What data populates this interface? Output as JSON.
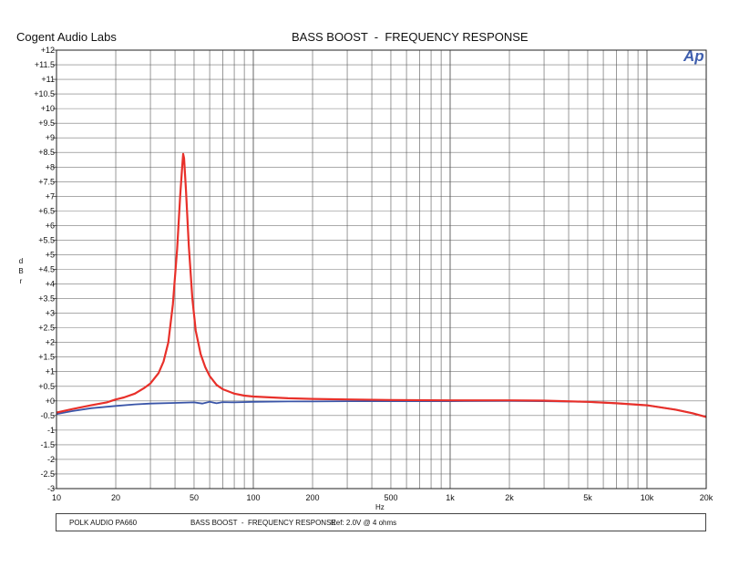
{
  "header": {
    "brand": "Cogent Audio Labs",
    "title": "BASS BOOST  -  FREQUENCY RESPONSE",
    "logo": "Ap"
  },
  "footer": {
    "model": "POLK AUDIO PA660",
    "title": "BASS BOOST  -  FREQUENCY RESPONSE",
    "ref": "Ref: 2.0V @ 4 ohms"
  },
  "chart_data": {
    "type": "line",
    "xlabel": "Hz",
    "ylabel": "d\nB\nr",
    "x_scale": "log",
    "xlim": [
      10,
      20000
    ],
    "ylim": [
      -3,
      12
    ],
    "grid": true,
    "x_ticks": [
      {
        "value": 10,
        "label": "10"
      },
      {
        "value": 20,
        "label": "20"
      },
      {
        "value": 50,
        "label": "50"
      },
      {
        "value": 100,
        "label": "100"
      },
      {
        "value": 200,
        "label": "200"
      },
      {
        "value": 500,
        "label": "500"
      },
      {
        "value": 1000,
        "label": "1k"
      },
      {
        "value": 2000,
        "label": "2k"
      },
      {
        "value": 5000,
        "label": "5k"
      },
      {
        "value": 10000,
        "label": "10k"
      },
      {
        "value": 20000,
        "label": "20k"
      }
    ],
    "y_ticks": [
      {
        "value": 12,
        "label": "+12"
      },
      {
        "value": 11.5,
        "label": "+11.5"
      },
      {
        "value": 11,
        "label": "+11"
      },
      {
        "value": 10.5,
        "label": "+10.5"
      },
      {
        "value": 10,
        "label": "+10"
      },
      {
        "value": 9.5,
        "label": "+9.5"
      },
      {
        "value": 9,
        "label": "+9"
      },
      {
        "value": 8.5,
        "label": "+8.5"
      },
      {
        "value": 8,
        "label": "+8"
      },
      {
        "value": 7.5,
        "label": "+7.5"
      },
      {
        "value": 7,
        "label": "+7"
      },
      {
        "value": 6.5,
        "label": "+6.5"
      },
      {
        "value": 6,
        "label": "+6"
      },
      {
        "value": 5.5,
        "label": "+5.5"
      },
      {
        "value": 5,
        "label": "+5"
      },
      {
        "value": 4.5,
        "label": "+4.5"
      },
      {
        "value": 4,
        "label": "+4"
      },
      {
        "value": 3.5,
        "label": "+3.5"
      },
      {
        "value": 3,
        "label": "+3"
      },
      {
        "value": 2.5,
        "label": "+2.5"
      },
      {
        "value": 2,
        "label": "+2"
      },
      {
        "value": 1.5,
        "label": "+1.5"
      },
      {
        "value": 1,
        "label": "+1"
      },
      {
        "value": 0.5,
        "label": "+0.5"
      },
      {
        "value": 0,
        "label": "+0"
      },
      {
        "value": -0.5,
        "label": "-0.5"
      },
      {
        "value": -1,
        "label": "-1"
      },
      {
        "value": -1.5,
        "label": "-1.5"
      },
      {
        "value": -2,
        "label": "-2"
      },
      {
        "value": -2.5,
        "label": "-2.5"
      },
      {
        "value": -3,
        "label": "-3"
      }
    ],
    "series": [
      {
        "color": "#e8302a",
        "points": [
          [
            10,
            -0.4
          ],
          [
            12,
            -0.28
          ],
          [
            15,
            -0.15
          ],
          [
            18,
            -0.05
          ],
          [
            20,
            0.05
          ],
          [
            22,
            0.12
          ],
          [
            25,
            0.25
          ],
          [
            28,
            0.45
          ],
          [
            30,
            0.6
          ],
          [
            33,
            0.95
          ],
          [
            35,
            1.35
          ],
          [
            37,
            2.0
          ],
          [
            39,
            3.3
          ],
          [
            41,
            5.2
          ],
          [
            42.5,
            7.0
          ],
          [
            43.5,
            8.0
          ],
          [
            44,
            8.45
          ],
          [
            44.5,
            8.3
          ],
          [
            45.5,
            7.2
          ],
          [
            47,
            5.3
          ],
          [
            49,
            3.5
          ],
          [
            51,
            2.4
          ],
          [
            54,
            1.6
          ],
          [
            57,
            1.15
          ],
          [
            60,
            0.85
          ],
          [
            65,
            0.55
          ],
          [
            70,
            0.4
          ],
          [
            80,
            0.25
          ],
          [
            90,
            0.18
          ],
          [
            100,
            0.15
          ],
          [
            150,
            0.09
          ],
          [
            200,
            0.07
          ],
          [
            300,
            0.05
          ],
          [
            500,
            0.03
          ],
          [
            1000,
            0.02
          ],
          [
            2000,
            0.02
          ],
          [
            3000,
            0.01
          ],
          [
            5000,
            -0.03
          ],
          [
            7000,
            -0.08
          ],
          [
            10000,
            -0.15
          ],
          [
            14000,
            -0.3
          ],
          [
            17000,
            -0.42
          ],
          [
            20000,
            -0.55
          ]
        ]
      },
      {
        "color": "#3a55a8",
        "points": [
          [
            10,
            -0.45
          ],
          [
            12,
            -0.35
          ],
          [
            15,
            -0.25
          ],
          [
            20,
            -0.17
          ],
          [
            25,
            -0.12
          ],
          [
            30,
            -0.09
          ],
          [
            40,
            -0.07
          ],
          [
            50,
            -0.05
          ],
          [
            55,
            -0.09
          ],
          [
            60,
            -0.03
          ],
          [
            65,
            -0.08
          ],
          [
            70,
            -0.04
          ],
          [
            80,
            -0.05
          ],
          [
            100,
            -0.03
          ],
          [
            150,
            -0.02
          ],
          [
            200,
            -0.02
          ],
          [
            300,
            -0.01
          ],
          [
            500,
            -0.01
          ],
          [
            1000,
            -0.01
          ],
          [
            2000,
            0.0
          ],
          [
            3000,
            -0.01
          ],
          [
            5000,
            -0.03
          ],
          [
            7000,
            -0.08
          ],
          [
            10000,
            -0.15
          ],
          [
            14000,
            -0.3
          ],
          [
            17000,
            -0.42
          ],
          [
            20000,
            -0.55
          ]
        ]
      }
    ]
  }
}
